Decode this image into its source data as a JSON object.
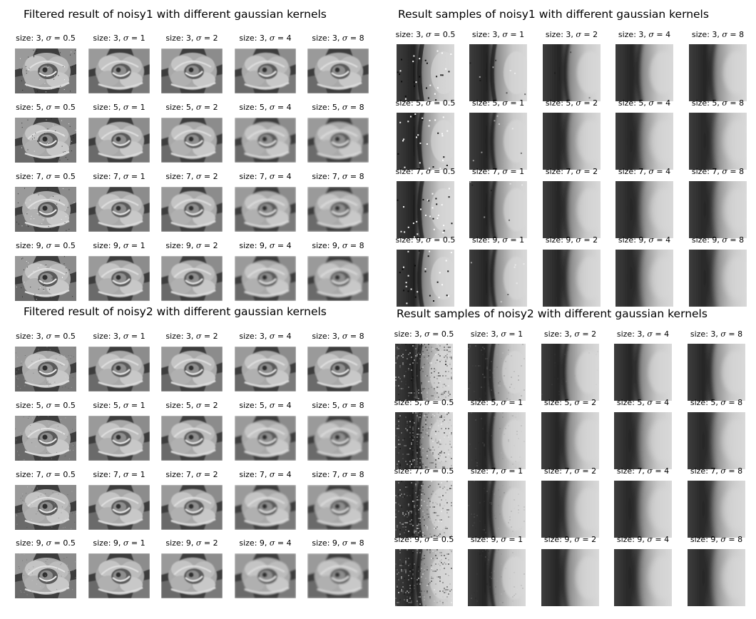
{
  "panels": [
    {
      "id": "p1",
      "title": "Filtered result of noisy1 with different gaussian kernels",
      "kind": "flower",
      "noise": "salt",
      "rows": [
        "3",
        "5",
        "7",
        "9"
      ],
      "sigmas": [
        "0.5",
        "1",
        "2",
        "4",
        "8"
      ]
    },
    {
      "id": "p2",
      "title": "Result samples of noisy1 with different gaussian kernels",
      "kind": "crop",
      "noise": "salt",
      "rows": [
        "3",
        "5",
        "7",
        "9"
      ],
      "sigmas": [
        "0.5",
        "1",
        "2",
        "4",
        "8"
      ]
    },
    {
      "id": "p3",
      "title": "Filtered result of noisy2 with different gaussian kernels",
      "kind": "flower",
      "noise": "gauss",
      "rows": [
        "3",
        "5",
        "7",
        "9"
      ],
      "sigmas": [
        "0.5",
        "1",
        "2",
        "4",
        "8"
      ]
    },
    {
      "id": "p4",
      "title": "Result samples of noisy2 with different gaussian kernels",
      "kind": "crop",
      "noise": "gauss",
      "rows": [
        "3",
        "5",
        "7",
        "9"
      ],
      "sigmas": [
        "0.5",
        "1",
        "2",
        "4",
        "8"
      ]
    }
  ],
  "label_prefix": "size: ",
  "sigma_symbol": "σ",
  "colors": {
    "background": "#ffffff",
    "text": "#000000"
  }
}
